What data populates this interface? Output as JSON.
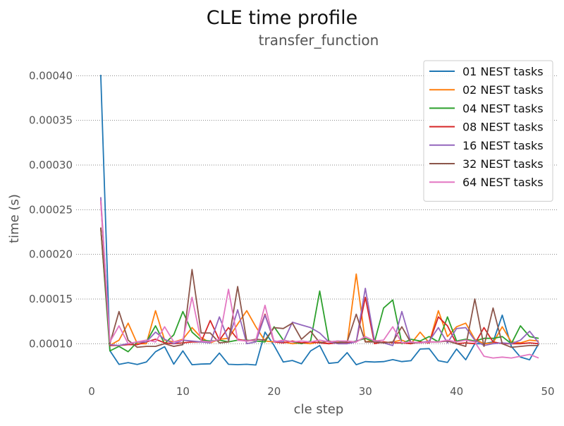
{
  "chart_data": {
    "type": "line",
    "title": "CLE time profile",
    "subtitle": "transfer_function",
    "xlabel": "cle step",
    "ylabel": "time (s)",
    "xlim": [
      0,
      51
    ],
    "ylim": [
      6e-05,
      0.00042
    ],
    "xticks": [
      "0",
      "10",
      "20",
      "30",
      "40",
      "50"
    ],
    "yticks": [
      "0.00010",
      "0.00015",
      "0.00020",
      "0.00025",
      "0.00030",
      "0.00035",
      "0.00040"
    ],
    "grid": "horizontal dotted",
    "legend_position": "top-right",
    "x": [
      1,
      2,
      3,
      4,
      5,
      6,
      7,
      8,
      9,
      10,
      11,
      12,
      13,
      14,
      15,
      16,
      17,
      18,
      19,
      20,
      21,
      22,
      23,
      24,
      25,
      26,
      27,
      28,
      29,
      30,
      31,
      32,
      33,
      34,
      35,
      36,
      37,
      38,
      39,
      40,
      41,
      42,
      43,
      44,
      45,
      46,
      47,
      48,
      49
    ],
    "series": [
      {
        "name": "01 NEST tasks",
        "color": "#1f77b4",
        "values": [
          0.000401,
          9.21e-05,
          7.69e-05,
          7.89e-05,
          7.67e-05,
          7.95e-05,
          9.1e-05,
          9.66e-05,
          7.71e-05,
          9.2e-05,
          7.65e-05,
          7.72e-05,
          7.75e-05,
          8.95e-05,
          7.7e-05,
          7.66e-05,
          7.7e-05,
          7.62e-05,
          0.000113,
          9.8e-05,
          7.95e-05,
          8.12e-05,
          7.75e-05,
          9.2e-05,
          9.8e-05,
          7.8e-05,
          7.9e-05,
          9e-05,
          7.65e-05,
          8e-05,
          7.95e-05,
          8e-05,
          8.22e-05,
          8e-05,
          8.1e-05,
          9.4e-05,
          9.45e-05,
          8.1e-05,
          7.9e-05,
          9.4e-05,
          8.2e-05,
          0.0001,
          0.0001,
          0.000102,
          0.000132,
          9.7e-05,
          8.5e-05,
          8.2e-05,
          0.0001
        ]
      },
      {
        "name": "02 NEST tasks",
        "color": "#ff7f0e",
        "values": [
          0.00023,
          9.82e-05,
          0.000104,
          0.000123,
          0.0001,
          0.0001,
          0.000137,
          0.000104,
          0.000102,
          0.000105,
          0.000118,
          0.000107,
          0.000101,
          0.000105,
          0.000106,
          0.000122,
          0.000137,
          0.000119,
          0.000103,
          0.000102,
          0.000102,
          0.0001,
          0.000101,
          0.0001,
          0.000102,
          0.0001,
          0.000102,
          0.0001,
          0.000178,
          0.000102,
          0.000104,
          0.000101,
          0.000102,
          0.000104,
          0.0001,
          0.000113,
          0.000101,
          0.000137,
          0.000108,
          0.000119,
          0.000123,
          0.000105,
          0.0001,
          0.000101,
          0.000119,
          0.000102,
          0.000101,
          0.000104,
          0.000103
        ]
      },
      {
        "name": "04 NEST tasks",
        "color": "#2ca02c",
        "values": [
          0.00023,
          9.2e-05,
          9.7e-05,
          9.1e-05,
          0.000102,
          0.000102,
          0.00012,
          0.0001,
          0.00011,
          0.000136,
          0.000113,
          0.000104,
          0.000103,
          0.000104,
          0.000102,
          0.000104,
          0.000104,
          0.000103,
          0.000102,
          0.000119,
          0.000104,
          0.000102,
          0.0001,
          0.000103,
          0.000159,
          0.000102,
          0.000103,
          0.000101,
          0.000103,
          0.000106,
          0.000102,
          0.00014,
          0.000149,
          0.0001,
          0.000105,
          0.000103,
          0.000108,
          0.000102,
          0.00013,
          0.000103,
          0.000105,
          0.000103,
          0.000106,
          0.000106,
          0.000108,
          0.0001,
          0.00012,
          0.000108,
          0.000106
        ]
      },
      {
        "name": "08 NEST tasks",
        "color": "#d62728",
        "values": [
          0.00026,
          9.8e-05,
          9.8e-05,
          9.9e-05,
          9.9e-05,
          0.000102,
          0.000105,
          0.000101,
          0.0001,
          0.000101,
          0.000102,
          0.000102,
          0.000126,
          0.000104,
          0.000118,
          0.000105,
          0.000103,
          0.000104,
          0.000133,
          0.000102,
          0.000101,
          0.000103,
          0.000101,
          0.000102,
          0.000101,
          0.0001,
          0.000101,
          0.000101,
          0.000102,
          0.000152,
          0.0001,
          0.000102,
          0.000101,
          0.000101,
          0.0001,
          0.000102,
          0.000101,
          0.00013,
          0.00012,
          0.0001,
          0.000101,
          0.0001,
          0.000118,
          0.000102,
          0.0001,
          0.0001,
          0.0001,
          0.000101,
          0.0001
        ]
      },
      {
        "name": "16 NEST tasks",
        "color": "#9467bd",
        "values": [
          0.000264,
          9.9e-05,
          9.8e-05,
          0.0001,
          0.000102,
          0.000102,
          0.000113,
          0.000105,
          0.0001,
          0.000104,
          0.000103,
          0.000102,
          0.000101,
          0.00013,
          0.000104,
          0.000138,
          0.0001,
          0.000102,
          0.000132,
          0.000103,
          0.000102,
          0.000124,
          0.000121,
          0.000118,
          0.000112,
          0.000102,
          0.0001,
          0.0001,
          0.000102,
          0.000162,
          0.000103,
          0.000101,
          9.8e-05,
          0.000136,
          0.000101,
          0.000101,
          0.000103,
          0.000118,
          0.000101,
          0.000117,
          0.000118,
          0.000104,
          9.8e-05,
          0.0001,
          0.000101,
          0.0001,
          0.000104,
          0.000114,
          0.000101
        ]
      },
      {
        "name": "32 NEST tasks",
        "color": "#8c564b",
        "values": [
          0.00023,
          0.0001,
          0.000136,
          0.000104,
          9.6e-05,
          9.7e-05,
          9.7e-05,
          0.0001,
          9.7e-05,
          9.9e-05,
          0.000183,
          0.000112,
          0.000112,
          0.000101,
          0.000102,
          0.000164,
          0.000103,
          0.000105,
          0.000104,
          0.000118,
          0.000117,
          0.000123,
          0.000105,
          0.000114,
          0.000101,
          0.000103,
          0.000101,
          0.000102,
          0.000133,
          0.000102,
          0.000102,
          0.000101,
          0.000102,
          0.000119,
          0.000101,
          0.000101,
          0.000102,
          0.000102,
          0.000103,
          0.0001,
          9.7e-05,
          0.00015,
          9.7e-05,
          0.00014,
          0.0001,
          9.6e-05,
          9.7e-05,
          9.8e-05,
          9.8e-05
        ]
      },
      {
        "name": "64 NEST tasks",
        "color": "#e377c2",
        "values": [
          0.00026,
          0.000102,
          0.00012,
          0.0001,
          0.000102,
          0.000104,
          0.000102,
          0.000119,
          0.000102,
          0.000104,
          0.000152,
          0.000103,
          0.000102,
          0.000105,
          0.000161,
          0.000104,
          0.000103,
          0.000104,
          0.000143,
          0.000102,
          0.000104,
          0.000102,
          0.000103,
          0.000102,
          0.000104,
          0.000102,
          0.000103,
          0.000103,
          0.000102,
          0.000108,
          0.000103,
          0.000104,
          0.000119,
          0.000101,
          0.000102,
          0.000101,
          0.000102,
          0.000102,
          0.000104,
          0.000102,
          0.000104,
          0.000102,
          8.6e-05,
          8.4e-05,
          8.5e-05,
          8.4e-05,
          8.6e-05,
          8.8e-05,
          8.4e-05
        ]
      }
    ]
  }
}
